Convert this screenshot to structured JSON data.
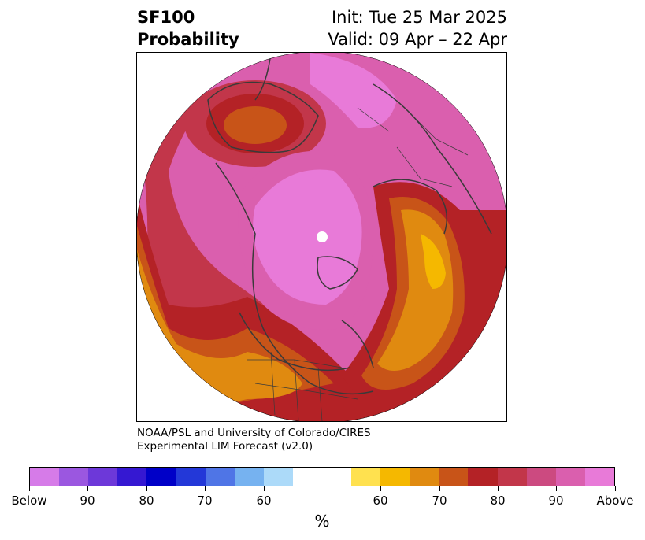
{
  "header": {
    "title_line1": "SF100",
    "title_line2": "Probability",
    "init": "Init: Tue 25 Mar 2025",
    "valid": "Valid: 09 Apr – 22 Apr"
  },
  "credit": {
    "line1": "NOAA/PSL and University of Colorado/CIRES",
    "line2": "Experimental LIM Forecast (v2.0)"
  },
  "colorbar": {
    "colors": [
      "#d67be8",
      "#9b57e0",
      "#6d38d9",
      "#3518d2",
      "#0000c8",
      "#2338d8",
      "#4f75e6",
      "#76b2f0",
      "#acdaf9",
      "#ffffff",
      "#ffe14f",
      "#f5b800",
      "#e08a10",
      "#c85418",
      "#b42226",
      "#c2364a",
      "#cc4a80",
      "#da5fae",
      "#e87ad8"
    ],
    "labels": [
      "Below",
      "90",
      "80",
      "70",
      "60",
      "60",
      "70",
      "80",
      "90",
      "Above"
    ],
    "units": "%"
  },
  "map": {
    "palette": {
      "above": "#e87ad8",
      "p90": "#da5fae",
      "p80_hi": "#cc4a80",
      "p80": "#c2364a",
      "p75": "#b42226",
      "p70_hi": "#c85418",
      "p70": "#e08a10",
      "p60": "#f5b800",
      "p50": "#ffe14f",
      "border": "#3a3a3a"
    }
  }
}
